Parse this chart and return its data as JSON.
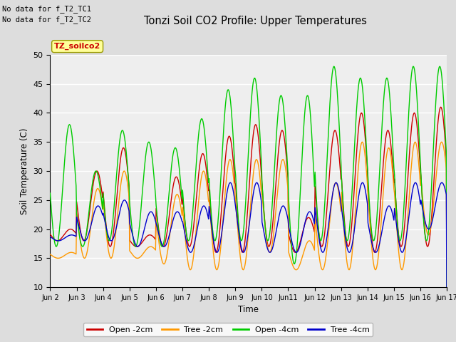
{
  "title": "Tonzi Soil CO2 Profile: Upper Temperatures",
  "ylabel": "Soil Temperature (C)",
  "xlabel": "Time",
  "annotation1": "No data for f_T2_TC1",
  "annotation2": "No data for f_T2_TC2",
  "legend_label": "TZ_soilco2",
  "ylim": [
    10,
    50
  ],
  "series_labels": [
    "Open -2cm",
    "Tree -2cm",
    "Open -4cm",
    "Tree -4cm"
  ],
  "series_colors": [
    "#cc0000",
    "#ff9900",
    "#00cc00",
    "#0000cc"
  ],
  "bg_color": "#dddddd",
  "plot_bg_color": "#eeeeee",
  "tick_labels": [
    "Jun 2",
    "Jun 3",
    "Jun 4",
    "Jun 5",
    "Jun 6",
    "Jun 7",
    "Jun 8",
    "Jun 9",
    "Jun 10",
    "Jun11",
    "Jun 12",
    "Jun 13",
    "Jun 14",
    "Jun 15",
    "Jun 16",
    "Jun 17"
  ],
  "yticks": [
    10,
    15,
    20,
    25,
    30,
    35,
    40,
    45,
    50
  ],
  "days": 15,
  "open2_peaks": [
    20,
    30,
    34,
    19,
    29,
    33,
    36,
    38,
    37,
    22,
    37,
    40,
    37,
    40,
    41
  ],
  "tree2_peaks": [
    16,
    27,
    30,
    17,
    26,
    30,
    32,
    32,
    32,
    18,
    28,
    35,
    34,
    35,
    35
  ],
  "open4_peaks": [
    38,
    30,
    37,
    35,
    34,
    39,
    44,
    46,
    43,
    43,
    48,
    46,
    46,
    48,
    48
  ],
  "tree4_peaks": [
    19,
    24,
    25,
    23,
    23,
    24,
    28,
    28,
    24,
    23,
    28,
    28,
    24,
    28,
    28
  ],
  "open2_mins": [
    18,
    18,
    17,
    17,
    17,
    17,
    16,
    16,
    17,
    16,
    17,
    17,
    16,
    17,
    17
  ],
  "tree2_mins": [
    15,
    15,
    15,
    15,
    14,
    13,
    13,
    13,
    16,
    13,
    13,
    13,
    13,
    13,
    19
  ],
  "open4_mins": [
    17,
    17,
    18,
    17,
    17,
    18,
    18,
    18,
    18,
    14,
    18,
    18,
    18,
    18,
    18
  ],
  "tree4_mins": [
    18,
    18,
    18,
    17,
    17,
    16,
    16,
    16,
    16,
    16,
    16,
    16,
    16,
    16,
    20
  ],
  "open2_phase": 0.52,
  "tree2_phase": 0.55,
  "open4_phase": 0.48,
  "tree4_phase": 0.56
}
